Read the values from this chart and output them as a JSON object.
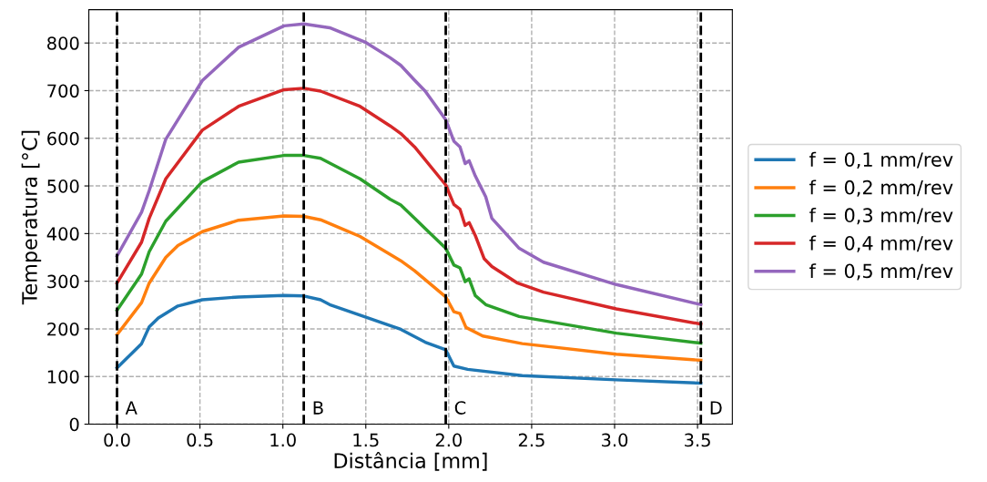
{
  "chart_data": {
    "type": "line",
    "xlabel": "Distância [mm]",
    "ylabel": "Temperatura [°C]",
    "xlim": [
      -0.17,
      3.71
    ],
    "ylim": [
      0,
      870
    ],
    "xticks": [
      {
        "value": 0,
        "label": "0.0"
      },
      {
        "value": 0.5,
        "label": "0.5"
      },
      {
        "value": 1,
        "label": "1.0"
      },
      {
        "value": 1.5,
        "label": "1.5"
      },
      {
        "value": 2,
        "label": "2.0"
      },
      {
        "value": 2.5,
        "label": "2.5"
      },
      {
        "value": 3,
        "label": "3.0"
      },
      {
        "value": 3.5,
        "label": "3.5"
      }
    ],
    "yticks": [
      0,
      100,
      200,
      300,
      400,
      500,
      600,
      700,
      800
    ],
    "grid": true,
    "legend": "right",
    "line_style": "solid",
    "marker": "none",
    "ref_lines": [
      {
        "axis": "x",
        "value": 0,
        "label": "A",
        "color": "#000000",
        "line_style": "dashed"
      },
      {
        "axis": "x",
        "value": 1.126,
        "label": "B",
        "color": "#000000",
        "line_style": "dashed"
      },
      {
        "axis": "x",
        "value": 1.982,
        "label": "C",
        "color": "#000000",
        "line_style": "dashed"
      },
      {
        "axis": "x",
        "value": 3.52,
        "label": "D",
        "color": "#000000",
        "line_style": "dashed"
      }
    ],
    "series": [
      {
        "name": "f = 0,1 mm/rev",
        "color": "#1f77b4",
        "x": [
          0,
          0.148,
          0.194,
          0.249,
          0.367,
          0.514,
          0.733,
          1.007,
          1.126,
          1.227,
          1.282,
          1.465,
          1.647,
          1.711,
          1.858,
          1.982,
          2.031,
          2.114,
          2.443,
          3.01,
          3.52
        ],
        "values": [
          118,
          169,
          204,
          223,
          248,
          261,
          267,
          270,
          269,
          261,
          251,
          229,
          207,
          199,
          172,
          156,
          122,
          115,
          102,
          93,
          86
        ]
      },
      {
        "name": "f = 0,2 mm/rev",
        "color": "#ff7f0e",
        "x": [
          0,
          0.148,
          0.194,
          0.294,
          0.367,
          0.514,
          0.733,
          1.007,
          1.126,
          1.227,
          1.465,
          1.647,
          1.711,
          1.794,
          1.982,
          2.031,
          2.068,
          2.104,
          2.205,
          2.443,
          3.01,
          3.52
        ],
        "values": [
          188,
          255,
          296,
          350,
          375,
          404,
          428,
          437,
          436,
          429,
          394,
          356,
          343,
          322,
          267,
          236,
          232,
          203,
          185,
          169,
          147,
          134
        ]
      },
      {
        "name": "f = 0,3 mm/rev",
        "color": "#2ca02c",
        "x": [
          0,
          0.148,
          0.194,
          0.294,
          0.514,
          0.733,
          1.007,
          1.126,
          1.227,
          1.465,
          1.647,
          1.711,
          1.794,
          1.982,
          2.031,
          2.068,
          2.099,
          2.123,
          2.16,
          2.223,
          2.425,
          3.01,
          3.52
        ],
        "values": [
          239,
          315,
          362,
          426,
          509,
          550,
          564,
          564,
          558,
          515,
          472,
          460,
          432,
          369,
          334,
          328,
          299,
          305,
          270,
          251,
          226,
          191,
          170
        ]
      },
      {
        "name": "f = 0,4 mm/rev",
        "color": "#d62728",
        "x": [
          0,
          0.148,
          0.194,
          0.294,
          0.514,
          0.733,
          1.007,
          1.126,
          1.227,
          1.465,
          1.647,
          1.711,
          1.794,
          1.982,
          2.031,
          2.068,
          2.099,
          2.123,
          2.16,
          2.214,
          2.26,
          2.415,
          2.571,
          3.01,
          3.52
        ],
        "values": [
          296,
          382,
          432,
          515,
          617,
          667,
          702,
          705,
          699,
          667,
          626,
          610,
          582,
          502,
          461,
          451,
          417,
          423,
          396,
          347,
          331,
          296,
          277,
          242,
          210
        ]
      },
      {
        "name": "f = 0,5 mm/rev",
        "color": "#9467bd",
        "x": [
          0,
          0.148,
          0.194,
          0.294,
          0.514,
          0.733,
          1.007,
          1.126,
          1.282,
          1.501,
          1.647,
          1.711,
          1.794,
          1.858,
          1.982,
          2.031,
          2.068,
          2.099,
          2.123,
          2.16,
          2.196,
          2.223,
          2.26,
          2.425,
          2.571,
          3.01,
          3.52
        ],
        "values": [
          353,
          445,
          490,
          598,
          721,
          791,
          836,
          840,
          832,
          801,
          769,
          753,
          722,
          699,
          639,
          594,
          582,
          547,
          553,
          521,
          496,
          477,
          432,
          369,
          340,
          293,
          251
        ]
      }
    ]
  }
}
